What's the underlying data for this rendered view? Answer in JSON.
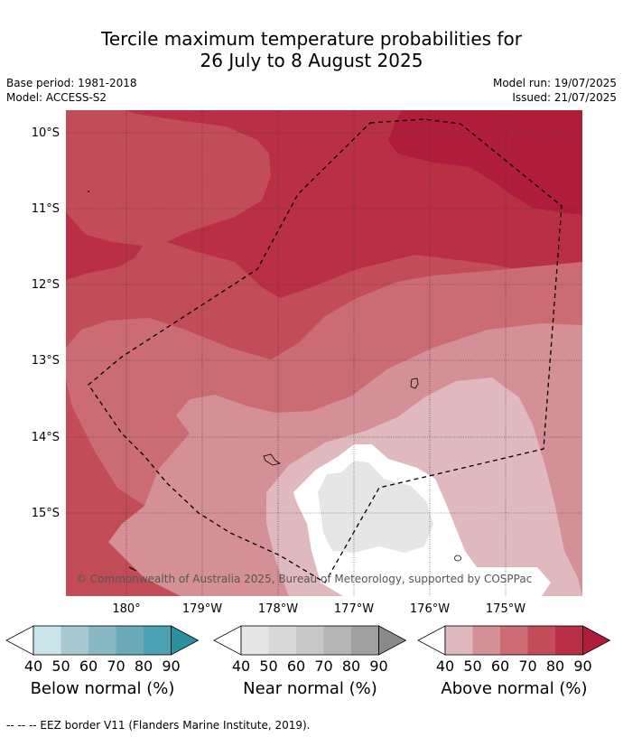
{
  "title": {
    "line1": "Tercile maximum temperature probabilities for",
    "line2": "26 July to 8 August 2025"
  },
  "meta": {
    "base_period": "Base period: 1981-2018",
    "model": "Model: ACCESS-S2",
    "model_run": "Model run: 19/07/2025",
    "issued": "Issued: 21/07/2025"
  },
  "map": {
    "lat_labels": [
      "10°S",
      "11°S",
      "12°S",
      "13°S",
      "14°S",
      "15°S"
    ],
    "lon_labels": [
      "180°",
      "179°W",
      "178°W",
      "177°W",
      "176°W",
      "175°W"
    ],
    "copyright": "© Commonwealth of Australia 2025, Bureau of Meteorology, supported by COSPPac",
    "eez_style": "dashed black line",
    "islands": [
      "small island near 176.2°W 13.3°S",
      "small island near 178.1°W 14.3°S",
      "islet near 175.6°W 15.6°S"
    ]
  },
  "colorbars": [
    {
      "label": "Below normal (%)",
      "ticks": [
        "40",
        "50",
        "60",
        "70",
        "80",
        "90"
      ],
      "colors": [
        "#cbe3ea",
        "#a6c9d0",
        "#89b9c5",
        "#6aaab8",
        "#4aa2b2",
        "#2b8f9f"
      ]
    },
    {
      "label": "Near normal (%)",
      "ticks": [
        "40",
        "50",
        "60",
        "70",
        "80",
        "90"
      ],
      "colors": [
        "#e6e6e6",
        "#d9d9d9",
        "#c8c8c8",
        "#b4b4b4",
        "#9f9f9f",
        "#8a8a8a"
      ]
    },
    {
      "label": "Above normal (%)",
      "ticks": [
        "40",
        "50",
        "60",
        "70",
        "80",
        "90"
      ],
      "colors": [
        "#e0b9bf",
        "#d58f97",
        "#cb6c75",
        "#c24c58",
        "#b93046",
        "#b01c3c"
      ]
    }
  ],
  "footer": "--  --  -- EEZ border V11 (Flanders Marine Institute, 2019)."
}
